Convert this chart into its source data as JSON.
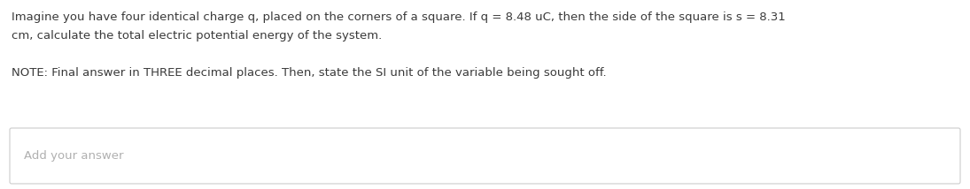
{
  "line1": "Imagine you have four identical charge q, placed on the corners of a square. If q = 8.48 uC, then the side of the square is s = 8.31",
  "line2": "cm, calculate the total electric potential energy of the system.",
  "line3": "NOTE: Final answer in THREE decimal places. Then, state the SI unit of the variable being sought off.",
  "placeholder": "Add your answer",
  "bg_color": "#ffffff",
  "text_color": "#3a3a3a",
  "placeholder_color": "#b0b0b0",
  "box_edge_color": "#cccccc",
  "font_size_main": 9.5,
  "font_size_placeholder": 9.5
}
